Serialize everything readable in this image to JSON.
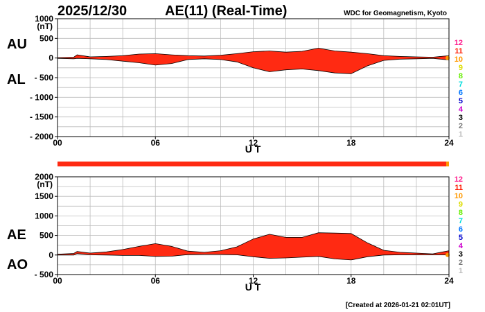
{
  "header": {
    "date": "2025/12/30",
    "title": "AE(11) (Real-Time)",
    "source": "WDC for Geomagnetism, Kyoto"
  },
  "footer": {
    "created": "[Created at 2026-01-21 02:01UT]"
  },
  "colors": {
    "fill": "#ff2a12",
    "grid": "#bbbbbb",
    "ink": "#000000"
  },
  "station_legend": [
    {
      "label": "12",
      "color": "#ff1a8c"
    },
    {
      "label": "11",
      "color": "#ff1a00"
    },
    {
      "label": "10",
      "color": "#ff9900"
    },
    {
      "label": "9",
      "color": "#dddd00"
    },
    {
      "label": "8",
      "color": "#66ee00"
    },
    {
      "label": "7",
      "color": "#00dddd"
    },
    {
      "label": "6",
      "color": "#0077ff"
    },
    {
      "label": "5",
      "color": "#0000cc"
    },
    {
      "label": "4",
      "color": "#cc00cc"
    },
    {
      "label": "3",
      "color": "#000000"
    },
    {
      "label": "2",
      "color": "#777777"
    },
    {
      "label": "1",
      "color": "#bbbbbb"
    }
  ],
  "chart_data": [
    {
      "type": "area",
      "panel": "AU/AL",
      "ylabel_unit": "(nT)",
      "xlabel": "U T",
      "upper_label": "AU",
      "lower_label": "AL",
      "ylim": [
        -2000,
        1000
      ],
      "ytick_values": [
        1000,
        500,
        0,
        -500,
        -1000,
        -1500,
        -2000
      ],
      "ytick_labels": [
        "1000",
        "500",
        "0",
        "- 500",
        "- 1000",
        "- 1500",
        "- 2000"
      ],
      "xlim": [
        0,
        24
      ],
      "xticks": [
        "00",
        "06",
        "12",
        "18",
        "24"
      ],
      "grid": true,
      "x_hours": [
        0,
        1,
        1.2,
        2,
        3,
        4,
        5,
        6,
        7,
        8,
        9,
        10,
        11,
        12,
        13,
        14,
        15,
        16,
        17,
        18,
        19,
        20,
        21,
        22,
        23,
        24
      ],
      "series": [
        {
          "name": "AU",
          "values": [
            10,
            20,
            80,
            30,
            40,
            60,
            100,
            110,
            80,
            60,
            50,
            70,
            110,
            160,
            180,
            150,
            170,
            250,
            180,
            150,
            110,
            60,
            40,
            30,
            20,
            60
          ]
        },
        {
          "name": "AL",
          "values": [
            -10,
            -20,
            -10,
            -20,
            -40,
            -80,
            -120,
            -180,
            -140,
            -40,
            -20,
            -40,
            -100,
            -250,
            -350,
            -300,
            -280,
            -320,
            -380,
            -400,
            -200,
            -60,
            -30,
            -20,
            -10,
            -50
          ]
        }
      ]
    },
    {
      "type": "area",
      "panel": "AE/AO",
      "ylabel_unit": "(nT)",
      "xlabel": "U T",
      "upper_label": "AE",
      "lower_label": "AO",
      "ylim": [
        -500,
        2000
      ],
      "ytick_values": [
        2000,
        1500,
        1000,
        500,
        0,
        -500
      ],
      "ytick_labels": [
        "2000",
        "1500",
        "1000",
        "500",
        "0",
        "- 500"
      ],
      "xlim": [
        0,
        24
      ],
      "xticks": [
        "00",
        "06",
        "12",
        "18",
        "24"
      ],
      "grid": true,
      "x_hours": [
        0,
        1,
        1.2,
        2,
        3,
        4,
        5,
        6,
        7,
        8,
        9,
        10,
        11,
        12,
        13,
        14,
        15,
        16,
        17,
        18,
        19,
        20,
        21,
        22,
        23,
        24
      ],
      "series": [
        {
          "name": "AE",
          "values": [
            20,
            40,
            90,
            50,
            80,
            140,
            220,
            290,
            220,
            100,
            70,
            110,
            210,
            410,
            530,
            450,
            450,
            570,
            560,
            550,
            310,
            120,
            70,
            50,
            30,
            110
          ]
        },
        {
          "name": "AO",
          "values": [
            0,
            0,
            35,
            5,
            0,
            -10,
            -10,
            -35,
            -30,
            10,
            15,
            15,
            5,
            -45,
            -85,
            -75,
            -55,
            -35,
            -100,
            -125,
            -45,
            0,
            5,
            5,
            5,
            5
          ]
        }
      ]
    }
  ]
}
